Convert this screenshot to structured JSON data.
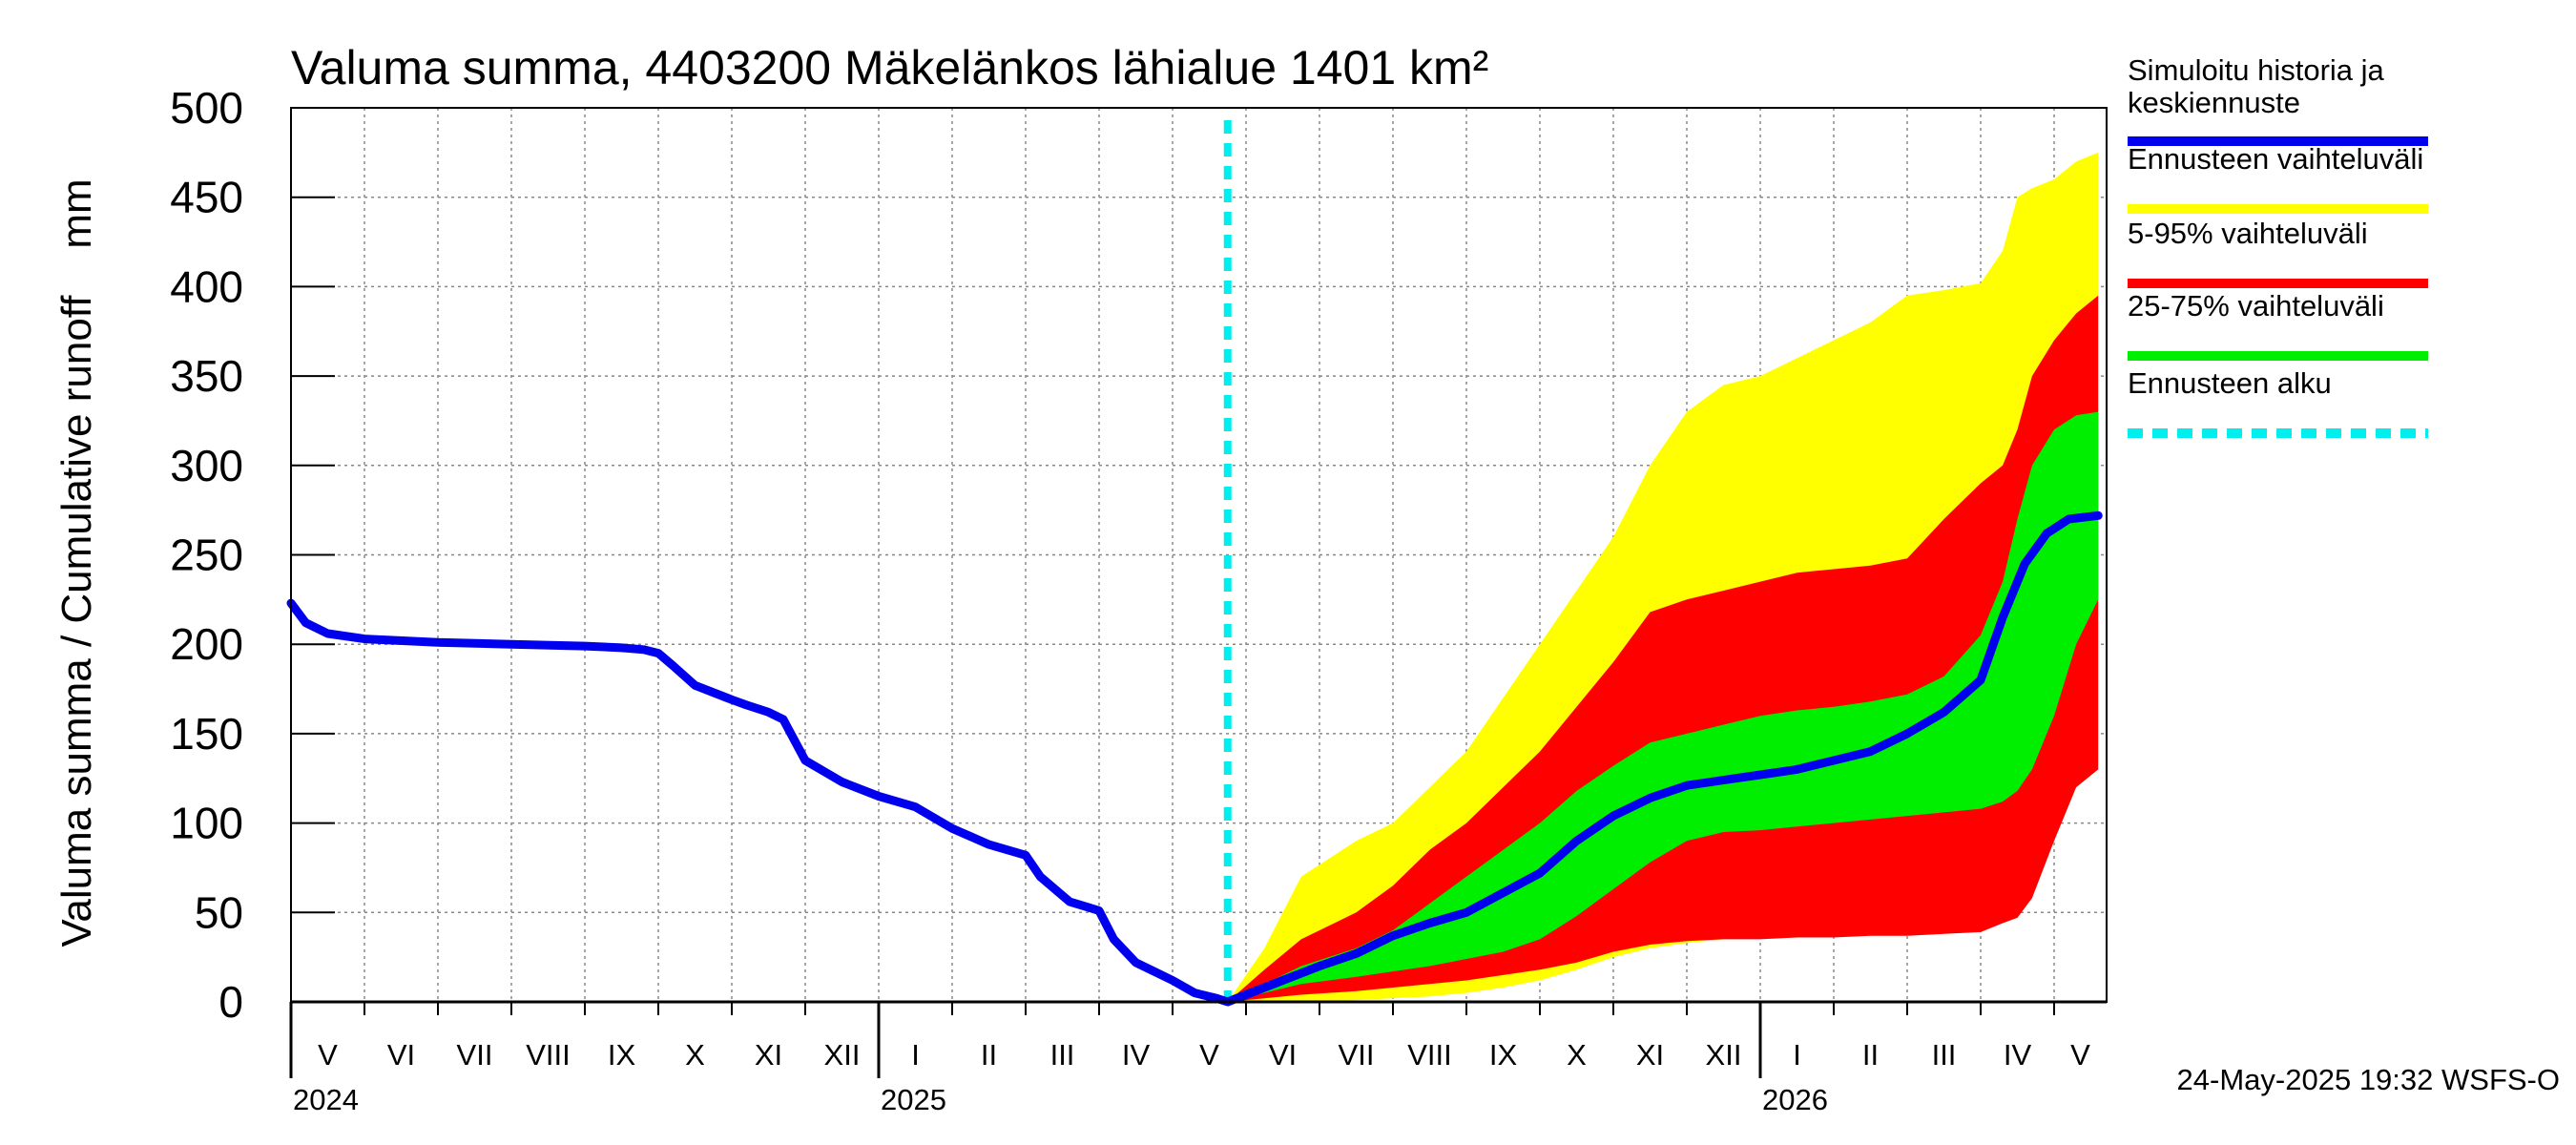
{
  "chart_data": {
    "type": "area",
    "title": "Valuma summa, 4403200 Mäkelänkos lähialue 1401 km²",
    "ylabel": "Valuma summa / Cumulative runoff    mm",
    "ylim": [
      0,
      500
    ],
    "yticks": [
      0,
      50,
      100,
      150,
      200,
      250,
      300,
      350,
      400,
      450,
      500
    ],
    "x_axis": {
      "unit": "month_index_from_2024-05-01",
      "range": [
        0,
        24.6
      ],
      "months": [
        "V",
        "VI",
        "VII",
        "VIII",
        "IX",
        "X",
        "XI",
        "XII",
        "I",
        "II",
        "III",
        "IV",
        "V",
        "VI",
        "VII",
        "VIII",
        "IX",
        "X",
        "XI",
        "XII",
        "I",
        "II",
        "III",
        "IV",
        "V"
      ],
      "years": [
        {
          "label": "2024",
          "at": 0
        },
        {
          "label": "2025",
          "at": 8
        },
        {
          "label": "2026",
          "at": 20
        }
      ]
    },
    "forecast_start": 12.75,
    "series": [
      {
        "name": "Simuloitu historia ja keskiennuste",
        "color": "#0000ee",
        "x": [
          0,
          0.2,
          0.5,
          1,
          2,
          3,
          4,
          4.5,
          4.8,
          5,
          5.2,
          5.5,
          6,
          6.2,
          6.5,
          6.7,
          7,
          7.5,
          8,
          8.5,
          9,
          9.5,
          10,
          10.2,
          10.6,
          11,
          11.2,
          11.5,
          12,
          12.3,
          12.6,
          12.75,
          13,
          13.5,
          14,
          14.5,
          15,
          15.5,
          16,
          16.5,
          17,
          17.5,
          18,
          18.5,
          19,
          19.5,
          20,
          20.5,
          21,
          21.5,
          22,
          22.5,
          23,
          23.3,
          23.6,
          23.9,
          24.2,
          24.6
        ],
        "values": [
          223,
          212,
          206,
          203,
          201,
          200,
          199,
          198,
          197,
          195,
          188,
          177,
          169,
          166,
          162,
          158,
          135,
          123,
          115,
          109,
          97,
          88,
          82,
          70,
          56,
          51,
          35,
          22,
          12,
          5,
          2,
          0,
          4,
          12,
          20,
          27,
          37,
          44,
          50,
          61,
          72,
          90,
          104,
          114,
          121,
          124,
          127,
          130,
          135,
          140,
          150,
          162,
          180,
          215,
          245,
          262,
          270,
          272
        ]
      },
      {
        "name": "Ennusteen vaihteluväli",
        "color": "#ffff00",
        "x": [
          12.75,
          13.25,
          13.75,
          14.5,
          15,
          15.5,
          16,
          16.5,
          17,
          17.5,
          18,
          18.5,
          19,
          19.5,
          20,
          20.5,
          21,
          21.5,
          22,
          22.5,
          23,
          23.3,
          23.5,
          23.7,
          24,
          24.3,
          24.6
        ],
        "low": [
          0,
          0,
          0,
          1,
          2,
          3,
          5,
          8,
          12,
          18,
          25,
          30,
          33,
          35,
          36,
          37,
          37,
          38,
          38,
          39,
          41,
          46,
          48,
          60,
          95,
          125,
          135
        ],
        "high": [
          0,
          30,
          70,
          90,
          100,
          120,
          140,
          170,
          200,
          230,
          260,
          300,
          330,
          345,
          350,
          360,
          370,
          380,
          395,
          398,
          402,
          420,
          450,
          455,
          460,
          470,
          475
        ]
      },
      {
        "name": "5-95% vaihteluväli",
        "color": "#ff0000",
        "x": [
          12.75,
          13.25,
          13.75,
          14.5,
          15,
          15.5,
          16,
          16.5,
          17,
          17.5,
          18,
          18.5,
          19,
          19.5,
          20,
          20.5,
          21,
          21.5,
          22,
          22.5,
          23,
          23.3,
          23.5,
          23.7,
          24,
          24.3,
          24.6
        ],
        "low": [
          0,
          2,
          4,
          6,
          8,
          10,
          12,
          15,
          18,
          22,
          28,
          32,
          34,
          35,
          35,
          36,
          36,
          37,
          37,
          38,
          39,
          44,
          47,
          58,
          90,
          120,
          130
        ],
        "high": [
          0,
          18,
          35,
          50,
          65,
          85,
          100,
          120,
          140,
          165,
          190,
          218,
          225,
          230,
          235,
          240,
          242,
          244,
          248,
          270,
          290,
          300,
          320,
          350,
          370,
          385,
          395
        ]
      },
      {
        "name": "25-75% vaihteluväli",
        "color": "#00ee00",
        "x": [
          12.75,
          13.25,
          13.75,
          14.5,
          15,
          15.5,
          16,
          16.5,
          17,
          17.5,
          18,
          18.5,
          19,
          19.5,
          20,
          20.5,
          21,
          21.5,
          22,
          22.5,
          23,
          23.3,
          23.5,
          23.7,
          24,
          24.3,
          24.6
        ],
        "low": [
          0,
          5,
          10,
          14,
          17,
          20,
          24,
          28,
          35,
          48,
          63,
          78,
          90,
          95,
          96,
          98,
          100,
          102,
          104,
          106,
          108,
          112,
          118,
          130,
          160,
          200,
          225
        ],
        "high": [
          0,
          10,
          20,
          30,
          40,
          55,
          70,
          85,
          100,
          118,
          132,
          145,
          150,
          155,
          160,
          163,
          165,
          168,
          172,
          182,
          205,
          235,
          270,
          300,
          320,
          328,
          330
        ]
      },
      {
        "name": "Ennusteen alku",
        "color": "#00eeee",
        "style": "dashed"
      }
    ]
  },
  "legend": [
    {
      "label": "Simuloitu historia ja\nkeskiennuste",
      "color": "#0000ee",
      "style": "solid"
    },
    {
      "label": "Ennusteen vaihteluväli",
      "color": "#ffff00",
      "style": "solid"
    },
    {
      "label": "5-95% vaihteluväli",
      "color": "#ff0000",
      "style": "solid"
    },
    {
      "label": "25-75% vaihteluväli",
      "color": "#00ee00",
      "style": "solid"
    },
    {
      "label": "Ennusteen alku",
      "color": "#00eeee",
      "style": "dashed"
    }
  ],
  "timestamp": "24-May-2025 19:32 WSFS-O"
}
